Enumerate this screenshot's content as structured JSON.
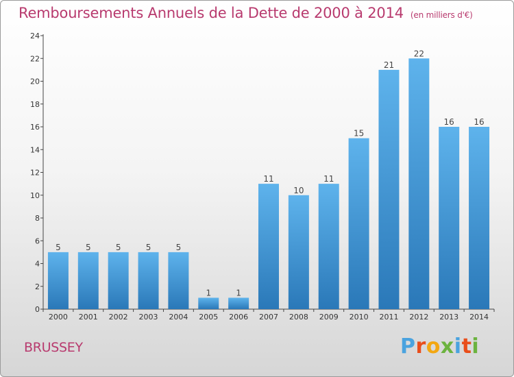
{
  "chart_data": {
    "type": "bar",
    "title": "Remboursements Annuels de la Dette de 2000 à 2014",
    "unit_label": "(en milliers d'€)",
    "categories": [
      "2000",
      "2001",
      "2002",
      "2003",
      "2004",
      "2005",
      "2006",
      "2007",
      "2008",
      "2009",
      "2010",
      "2011",
      "2012",
      "2013",
      "2014"
    ],
    "values": [
      5,
      5,
      5,
      5,
      5,
      1,
      1,
      11,
      10,
      11,
      15,
      21,
      22,
      16,
      16
    ],
    "ylim": [
      0,
      24
    ],
    "yticks": [
      0,
      2,
      4,
      6,
      8,
      10,
      12,
      14,
      16,
      18,
      20,
      22,
      24
    ],
    "xlabel": "",
    "ylabel": "",
    "grid": false
  },
  "footer": {
    "commune": "BRUSSEY",
    "brand": "Proxiti"
  },
  "colors": {
    "title": "#b83a6e",
    "bar_light": "#5aaee8",
    "bar_dark": "#2a78b8",
    "brand_letters": [
      "#4aa3df",
      "#e94e1b",
      "#f3a712",
      "#6cb33f",
      "#4aa3df",
      "#e94e1b",
      "#6cb33f"
    ]
  }
}
